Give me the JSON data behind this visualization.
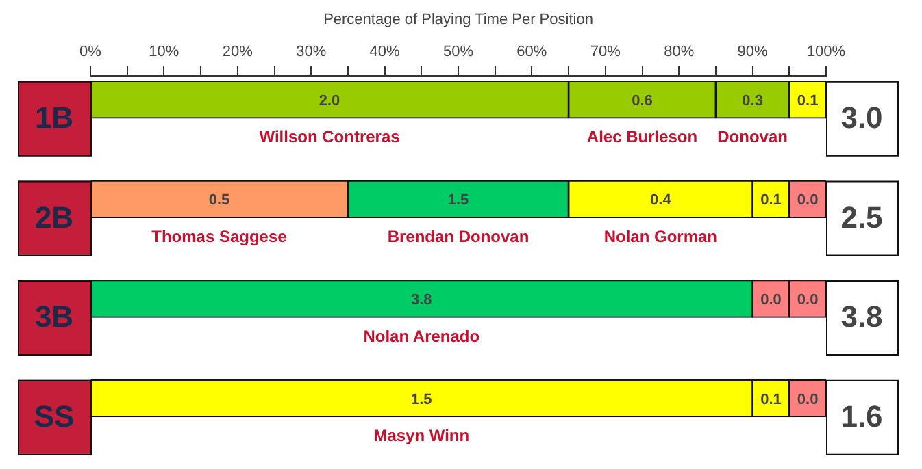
{
  "chart_data": {
    "type": "bar",
    "orientation": "horizontal",
    "stacked": true,
    "xlabel": "Percentage of Playing Time Per Position",
    "categories": [
      "1B",
      "2B",
      "3B",
      "SS"
    ],
    "series": [
      {
        "colors": [
          "#99cc00",
          "#ff9966",
          "#00cc66",
          "#ffff00"
        ],
        "values": [
          65,
          35,
          90,
          90
        ]
      },
      {
        "colors": [
          "#99cc00",
          "#00cc66",
          "#ff8080",
          "#ffff00"
        ],
        "values": [
          20,
          30,
          5,
          5
        ]
      },
      {
        "colors": [
          "#99cc00",
          "#ffff00",
          "#ff8080",
          "#ff8080"
        ],
        "values": [
          10,
          25,
          5,
          5
        ]
      },
      {
        "colors": [
          "#ffff00",
          "#ffff00",
          null,
          null
        ],
        "values": [
          5,
          5,
          null,
          null
        ]
      },
      {
        "colors": [
          null,
          "#ff8080",
          null,
          null
        ],
        "values": [
          null,
          5,
          null,
          null
        ]
      }
    ],
    "xlim": [
      0,
      100
    ],
    "xticks": [
      {
        "value": 0,
        "label": "0%"
      },
      {
        "value": 5,
        "label": null
      },
      {
        "value": 10,
        "label": "10%"
      },
      {
        "value": 15,
        "label": null
      },
      {
        "value": 20,
        "label": "20%"
      },
      {
        "value": 25,
        "label": null
      },
      {
        "value": 30,
        "label": "30%"
      },
      {
        "value": 35,
        "label": null
      },
      {
        "value": 40,
        "label": "40%"
      },
      {
        "value": 45,
        "label": null
      },
      {
        "value": 50,
        "label": "50%"
      },
      {
        "value": 55,
        "label": null
      },
      {
        "value": 60,
        "label": "60%"
      },
      {
        "value": 65,
        "label": null
      },
      {
        "value": 70,
        "label": "70%"
      },
      {
        "value": 75,
        "label": null
      },
      {
        "value": 80,
        "label": "80%"
      },
      {
        "value": 85,
        "label": null
      },
      {
        "value": 90,
        "label": "90%"
      },
      {
        "value": 95,
        "label": null
      },
      {
        "value": 100,
        "label": "100%"
      }
    ],
    "annotations": [
      "3.0",
      "2.5",
      "3.8",
      "1.6",
      {
        "text": "2.0",
        "x": 32.5,
        "y": "1B"
      },
      {
        "text": "0.6",
        "x": 75,
        "y": "1B"
      },
      {
        "text": "0.3",
        "x": 90,
        "y": "1B"
      },
      {
        "text": "0.1",
        "x": 97.5,
        "y": "1B"
      },
      {
        "text": "0.5",
        "x": 17.5,
        "y": "2B"
      },
      {
        "text": "1.5",
        "x": 50,
        "y": "2B"
      },
      {
        "text": "0.4",
        "x": 77.5,
        "y": "2B"
      },
      {
        "text": "0.1",
        "x": 92.5,
        "y": "2B"
      },
      {
        "text": "0.0",
        "x": 97.5,
        "y": "2B"
      },
      {
        "text": "3.8",
        "x": 45,
        "y": "3B"
      },
      {
        "text": "0.0",
        "x": 92.5,
        "y": "3B"
      },
      {
        "text": "0.0",
        "x": 97.5,
        "y": "3B"
      },
      {
        "text": "1.5",
        "x": 45,
        "y": "SS"
      },
      {
        "text": "0.1",
        "x": 92.5,
        "y": "SS"
      },
      {
        "text": "0.0",
        "x": 97.5,
        "y": "SS"
      },
      {
        "text": "Willson Contreras",
        "x": 32.5,
        "y": "1B"
      },
      {
        "text": "Alec Burleson",
        "x": 75,
        "y": "1B"
      },
      {
        "text": "Donovan",
        "x": 90,
        "y": "1B"
      },
      {
        "text": "Thomas Saggese",
        "x": 17.5,
        "y": "2B"
      },
      {
        "text": "Brendan Donovan",
        "x": 50,
        "y": "2B"
      },
      {
        "text": "Nolan Gorman",
        "x": 77.5,
        "y": "2B"
      },
      {
        "text": "Nolan Arenado",
        "x": 45,
        "y": "3B"
      },
      {
        "text": "Masyn Winn",
        "x": 45,
        "y": "SS"
      }
    ]
  }
}
